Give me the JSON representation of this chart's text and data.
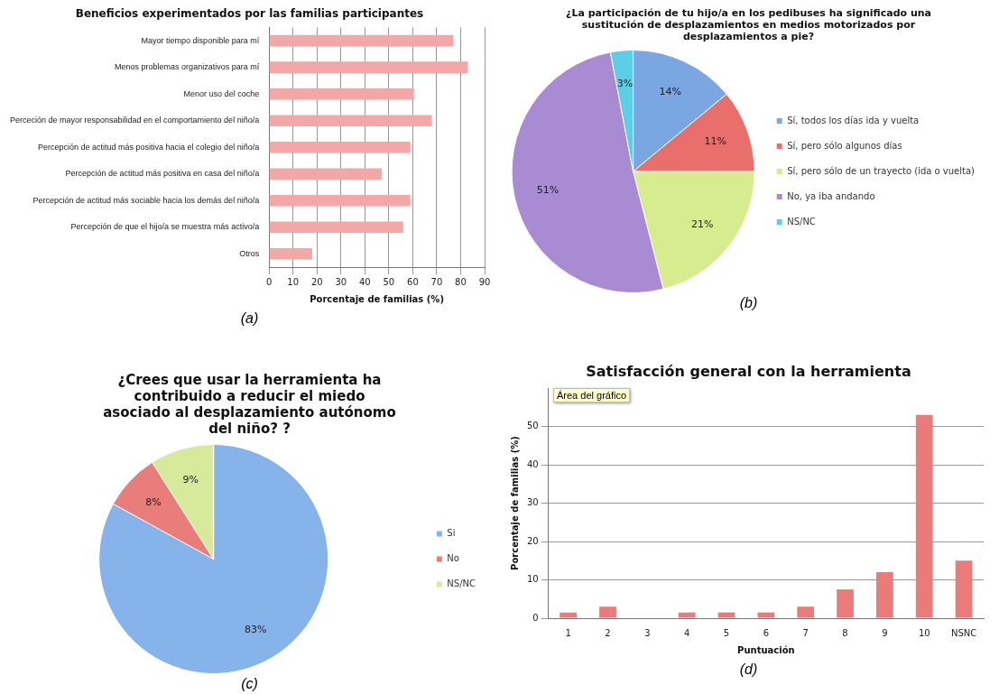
{
  "chart_data": [
    {
      "type": "bar",
      "orientation": "horizontal",
      "title": "Beneficios experimentados por las familias participantes",
      "xlabel": "Porcentaje de familias (%)",
      "categories": [
        "Mayor tiempo disponible para mí",
        "Menos problemas organizativos para mí",
        "Menor uso del coche",
        "Perceción de mayor responsabilidad en el comportamiento del niño/a",
        "Percepción de actitud más positiva hacia el colegio del niño/a",
        "Percepción de actitud más positiva en casa del niño/a",
        "Percepción de actitud más sociable hacia los demás del niño/a",
        "Percepción de que el hijo/a se muestra más activo/a",
        "Otros"
      ],
      "values": [
        77,
        83,
        60.5,
        68,
        59,
        47,
        59,
        56,
        18
      ],
      "color": "#f4a7a7",
      "xlim": [
        0,
        90
      ],
      "xticks": [
        0,
        10,
        20,
        30,
        40,
        50,
        60,
        70,
        80,
        90
      ],
      "grid": "x",
      "annotations": [
        "(a)"
      ]
    },
    {
      "type": "pie",
      "title": "¿La participación de tu hijo/a en los pedibuses ha significado una sustitución de desplazamientos en medios motorizados por desplazamientos a pie?",
      "categories": [
        "Sí, todos los días ida y vuelta",
        "Sí, pero sólo algunos días",
        "Sí, pero sólo de un trayecto (ida o vuelta)",
        "No, ya iba andando",
        "NS/NC"
      ],
      "values": [
        14,
        11,
        21,
        51,
        3
      ],
      "colors": [
        "#7aa6e2",
        "#e86f6c",
        "#d6ec8e",
        "#a88bd3",
        "#5ccfe6"
      ],
      "value_labels": [
        "14%",
        "11%",
        "21%",
        "51%",
        "3%"
      ],
      "legend": "right",
      "annotations": [
        "(b)"
      ]
    },
    {
      "type": "pie",
      "title": "¿Crees que usar la herramienta ha contribuido a reducir el miedo asociado al desplazamiento autónomo del niño? ?",
      "categories": [
        "Si",
        "No",
        "NS/NC"
      ],
      "values": [
        83,
        8,
        9
      ],
      "colors": [
        "#86b3ea",
        "#e97d7a",
        "#d7ea9b"
      ],
      "value_labels": [
        "83%",
        "8%",
        "9%"
      ],
      "legend": "right",
      "annotations": [
        "(c)"
      ]
    },
    {
      "type": "bar",
      "title": "Satisfacción general con la herramienta",
      "xlabel": "Puntuación",
      "ylabel": "Porcentaje de familias (%)",
      "categories": [
        "1",
        "2",
        "3",
        "4",
        "5",
        "6",
        "7",
        "8",
        "9",
        "10",
        "NSNC"
      ],
      "values": [
        1.5,
        3,
        0,
        1.5,
        1.5,
        1.5,
        3,
        7.5,
        12,
        53,
        15
      ],
      "color": "#e97b7b",
      "ylim": [
        0,
        60
      ],
      "yticks": [
        0,
        10,
        20,
        30,
        40,
        50
      ],
      "grid": "y",
      "annotations": [
        "Área del gráfico",
        "(d)"
      ]
    }
  ]
}
